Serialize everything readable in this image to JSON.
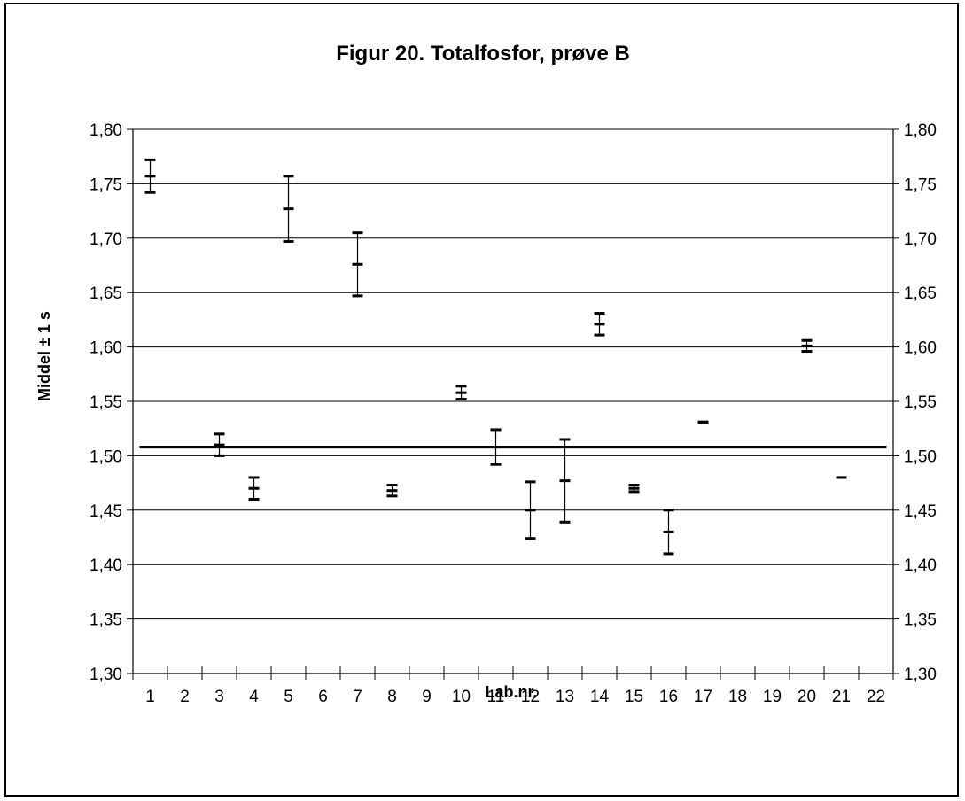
{
  "chart_data": {
    "type": "scatter",
    "title": "Figur 20. Totalfosfor, prøve B",
    "xlabel": "Lab.nr.",
    "ylabel": "Middel ± 1 s",
    "ylim": [
      1.3,
      1.8
    ],
    "ytick_values": [
      1.3,
      1.35,
      1.4,
      1.45,
      1.5,
      1.55,
      1.6,
      1.65,
      1.7,
      1.75,
      1.8
    ],
    "ytick_labels": [
      "1,30",
      "1,35",
      "1,40",
      "1,45",
      "1,50",
      "1,55",
      "1,60",
      "1,65",
      "1,70",
      "1,75",
      "1,80"
    ],
    "categories": [
      "1",
      "2",
      "3",
      "4",
      "5",
      "6",
      "7",
      "8",
      "9",
      "10",
      "11",
      "12",
      "13",
      "14",
      "15",
      "16",
      "17",
      "18",
      "19",
      "20",
      "21",
      "22"
    ],
    "grid": true,
    "reference_line": 1.508,
    "series": [
      {
        "points": [
          {
            "lab": "1",
            "mean": 1.757,
            "sd": 0.015
          },
          {
            "lab": "3",
            "mean": 1.51,
            "sd": 0.01
          },
          {
            "lab": "4",
            "mean": 1.47,
            "sd": 0.01
          },
          {
            "lab": "5",
            "mean": 1.727,
            "sd": 0.03
          },
          {
            "lab": "7",
            "mean": 1.676,
            "sd": 0.029
          },
          {
            "lab": "8",
            "mean": 1.468,
            "sd": 0.005
          },
          {
            "lab": "10",
            "mean": 1.558,
            "sd": 0.006
          },
          {
            "lab": "11",
            "mean": 1.508,
            "sd": 0.016
          },
          {
            "lab": "12",
            "mean": 1.45,
            "sd": 0.026
          },
          {
            "lab": "13",
            "mean": 1.477,
            "sd": 0.038
          },
          {
            "lab": "14",
            "mean": 1.621,
            "sd": 0.01
          },
          {
            "lab": "15",
            "mean": 1.47,
            "sd": 0.003
          },
          {
            "lab": "16",
            "mean": 1.43,
            "sd": 0.02
          },
          {
            "lab": "17",
            "mean": 1.531,
            "sd": 0.0
          },
          {
            "lab": "20",
            "mean": 1.601,
            "sd": 0.005
          },
          {
            "lab": "21",
            "mean": 1.48,
            "sd": 0.0
          }
        ]
      }
    ]
  }
}
